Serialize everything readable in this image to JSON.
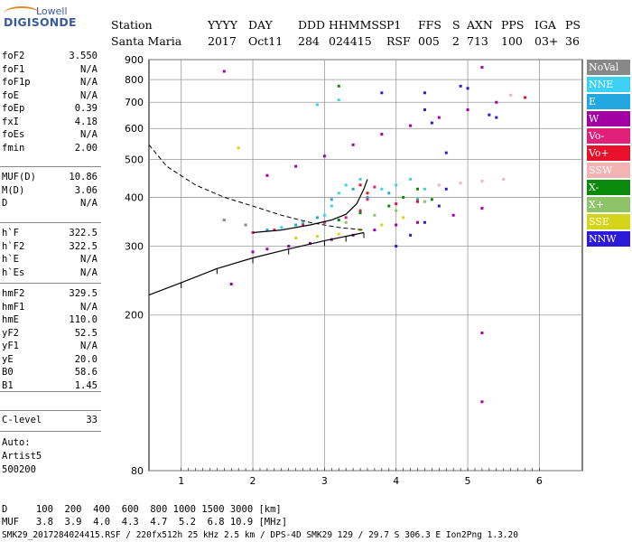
{
  "logo": {
    "brand": "Lowell",
    "product": "DIGISONDE"
  },
  "header": {
    "line1": [
      "Station",
      "YYYY",
      "DAY",
      "DDD",
      "HHMMSS",
      "P1",
      "FFS",
      "S",
      "AXN",
      "PPS",
      "IGA",
      "PS"
    ],
    "line2": [
      "Santa Maria",
      "2017",
      "Oct11",
      "284",
      "024415",
      "RSF",
      "005",
      "2",
      "713",
      "100",
      "03+",
      "36"
    ]
  },
  "params": {
    "group1": [
      {
        "k": "foF2",
        "v": "3.550"
      },
      {
        "k": "foF1",
        "v": "N/A"
      },
      {
        "k": "foF1p",
        "v": "N/A"
      },
      {
        "k": "foE",
        "v": "N/A"
      },
      {
        "k": "foEp",
        "v": "0.39"
      },
      {
        "k": "fxI",
        "v": "4.18"
      },
      {
        "k": "foEs",
        "v": "N/A"
      },
      {
        "k": "fmin",
        "v": "2.00"
      }
    ],
    "group2": [
      {
        "k": "MUF(D)",
        "v": "10.86"
      },
      {
        "k": "M(D)",
        "v": "3.06"
      },
      {
        "k": "D",
        "v": "N/A"
      }
    ],
    "group3": [
      {
        "k": "h`F",
        "v": "322.5"
      },
      {
        "k": "h`F2",
        "v": "322.5"
      },
      {
        "k": "h`E",
        "v": "N/A"
      },
      {
        "k": "h`Es",
        "v": "N/A"
      }
    ],
    "group4": [
      {
        "k": "hmF2",
        "v": "329.5"
      },
      {
        "k": "hmF1",
        "v": "N/A"
      },
      {
        "k": "hmE",
        "v": "110.0"
      },
      {
        "k": "yF2",
        "v": "52.5"
      },
      {
        "k": "yF1",
        "v": "N/A"
      },
      {
        "k": "yE",
        "v": "20.0"
      },
      {
        "k": "B0",
        "v": "58.6"
      },
      {
        "k": "B1",
        "v": "1.45"
      }
    ],
    "clevel": {
      "k": "C-level",
      "v": "33"
    },
    "auto": [
      "Auto:",
      "Artist5",
      "500200"
    ]
  },
  "legend": [
    {
      "label": "NoVal",
      "color": "#888888"
    },
    {
      "label": "NNE",
      "color": "#3dd0f5"
    },
    {
      "label": "E",
      "color": "#22a8e0"
    },
    {
      "label": "W",
      "color": "#a300a3"
    },
    {
      "label": "Vo-",
      "color": "#e0207a"
    },
    {
      "label": "Vo+",
      "color": "#e8102a"
    },
    {
      "label": "SSW",
      "color": "#f4b3b3"
    },
    {
      "label": "X-",
      "color": "#0b8a0b"
    },
    {
      "label": "X+",
      "color": "#8fc36a"
    },
    {
      "label": "SSE",
      "color": "#d4d41a"
    },
    {
      "label": "NNW",
      "color": "#2b1bd6"
    }
  ],
  "footer": {
    "line1": "D     100  200  400  600  800 1000 1500 3000 [km]",
    "line2": "MUF   3.8  3.9  4.0  4.3  4.7  5.2  6.8 10.9 [MHz]",
    "line3": "SMK29_2017284024415.RSF / 220fx512h 25 kHz 2.5 km / DPS-4D SMK29 129 / 29.7 S 306.3 E Ion2Png 1.3.20"
  },
  "chart_data": {
    "type": "scatter",
    "xlim": [
      0.55,
      6.6
    ],
    "ylim": [
      80,
      900
    ],
    "y_scale": "log",
    "xticks": [
      1,
      2,
      3,
      4,
      5,
      6
    ],
    "yticks": [
      80,
      200,
      300,
      400,
      500,
      600,
      700,
      800,
      900
    ],
    "grid": true,
    "series": [
      {
        "name": "NNE",
        "color": "#3dd0f5",
        "points": [
          [
            2.4,
            335
          ],
          [
            2.7,
            345
          ],
          [
            3.0,
            360
          ],
          [
            3.1,
            380
          ],
          [
            3.2,
            410
          ],
          [
            3.3,
            430
          ],
          [
            3.5,
            445
          ],
          [
            3.8,
            420
          ],
          [
            4.0,
            430
          ],
          [
            4.2,
            445
          ],
          [
            4.4,
            420
          ],
          [
            2.9,
            690
          ],
          [
            3.2,
            710
          ]
        ]
      },
      {
        "name": "E",
        "color": "#22a8e0",
        "points": [
          [
            2.2,
            330
          ],
          [
            2.6,
            340
          ],
          [
            2.9,
            355
          ],
          [
            3.1,
            395
          ],
          [
            3.4,
            420
          ],
          [
            3.6,
            400
          ],
          [
            3.9,
            410
          ],
          [
            4.3,
            395
          ]
        ]
      },
      {
        "name": "W",
        "color": "#a300a3",
        "points": [
          [
            2.0,
            290
          ],
          [
            2.2,
            295
          ],
          [
            2.5,
            300
          ],
          [
            2.8,
            305
          ],
          [
            3.1,
            312
          ],
          [
            3.4,
            320
          ],
          [
            3.7,
            330
          ],
          [
            4.0,
            340
          ],
          [
            4.3,
            345
          ],
          [
            4.8,
            360
          ],
          [
            5.2,
            375
          ],
          [
            2.2,
            455
          ],
          [
            2.6,
            480
          ],
          [
            3.0,
            510
          ],
          [
            3.4,
            545
          ],
          [
            3.8,
            580
          ],
          [
            4.2,
            610
          ],
          [
            4.6,
            640
          ],
          [
            5.0,
            670
          ],
          [
            5.4,
            700
          ],
          [
            1.7,
            240
          ],
          [
            5.2,
            120
          ],
          [
            5.2,
            180
          ],
          [
            1.6,
            840
          ],
          [
            5.2,
            860
          ]
        ]
      },
      {
        "name": "Vo-",
        "color": "#e0207a",
        "points": [
          [
            2.0,
            325
          ],
          [
            2.3,
            330
          ],
          [
            2.7,
            340
          ],
          [
            3.0,
            345
          ],
          [
            3.3,
            355
          ],
          [
            3.5,
            370
          ],
          [
            3.6,
            395
          ],
          [
            3.7,
            425
          ]
        ]
      },
      {
        "name": "Vo+",
        "color": "#e8102a",
        "points": [
          [
            3.5,
            430
          ],
          [
            3.6,
            410
          ],
          [
            4.0,
            385
          ],
          [
            4.3,
            390
          ],
          [
            5.8,
            720
          ]
        ]
      },
      {
        "name": "SSW",
        "color": "#f4b3b3",
        "points": [
          [
            4.6,
            430
          ],
          [
            4.9,
            435
          ],
          [
            5.2,
            440
          ],
          [
            5.5,
            445
          ],
          [
            5.6,
            730
          ]
        ]
      },
      {
        "name": "X-",
        "color": "#0b8a0b",
        "points": [
          [
            3.2,
            350
          ],
          [
            3.5,
            365
          ],
          [
            3.9,
            380
          ],
          [
            4.1,
            400
          ],
          [
            4.3,
            420
          ],
          [
            3.2,
            770
          ],
          [
            4.5,
            395
          ]
        ]
      },
      {
        "name": "X+",
        "color": "#8fc36a",
        "points": [
          [
            3.3,
            345
          ],
          [
            3.7,
            360
          ],
          [
            4.0,
            370
          ],
          [
            4.4,
            390
          ]
        ]
      },
      {
        "name": "SSE",
        "color": "#d4d41a",
        "points": [
          [
            2.6,
            315
          ],
          [
            2.9,
            318
          ],
          [
            3.2,
            322
          ],
          [
            3.5,
            330
          ],
          [
            3.8,
            340
          ],
          [
            4.1,
            355
          ],
          [
            1.8,
            535
          ]
        ]
      },
      {
        "name": "NNW",
        "color": "#2b1bd6",
        "points": [
          [
            4.0,
            300
          ],
          [
            4.2,
            320
          ],
          [
            4.4,
            345
          ],
          [
            4.6,
            380
          ],
          [
            4.7,
            420
          ],
          [
            4.7,
            520
          ],
          [
            4.5,
            620
          ],
          [
            4.4,
            670
          ],
          [
            4.4,
            740
          ],
          [
            4.9,
            770
          ],
          [
            5.0,
            760
          ],
          [
            5.3,
            650
          ],
          [
            5.4,
            640
          ],
          [
            3.8,
            740
          ]
        ]
      },
      {
        "name": "NoVal",
        "color": "#888888",
        "points": [
          [
            1.6,
            350
          ],
          [
            1.9,
            340
          ]
        ]
      }
    ],
    "curves": {
      "dashed": [
        [
          0.55,
          545
        ],
        [
          0.8,
          480
        ],
        [
          1.2,
          430
        ],
        [
          1.6,
          400
        ],
        [
          2.0,
          380
        ],
        [
          2.4,
          360
        ],
        [
          2.8,
          345
        ],
        [
          3.2,
          335
        ],
        [
          3.55,
          330
        ]
      ],
      "profile": [
        [
          0.55,
          225
        ],
        [
          1.0,
          242
        ],
        [
          1.5,
          263
        ],
        [
          2.0,
          280
        ],
        [
          2.5,
          295
        ],
        [
          3.0,
          310
        ],
        [
          3.3,
          318
        ],
        [
          3.55,
          325
        ]
      ],
      "trace": [
        [
          2.0,
          325
        ],
        [
          2.4,
          330
        ],
        [
          2.8,
          340
        ],
        [
          3.1,
          350
        ],
        [
          3.3,
          362
        ],
        [
          3.45,
          385
        ],
        [
          3.55,
          420
        ],
        [
          3.6,
          445
        ]
      ]
    }
  }
}
